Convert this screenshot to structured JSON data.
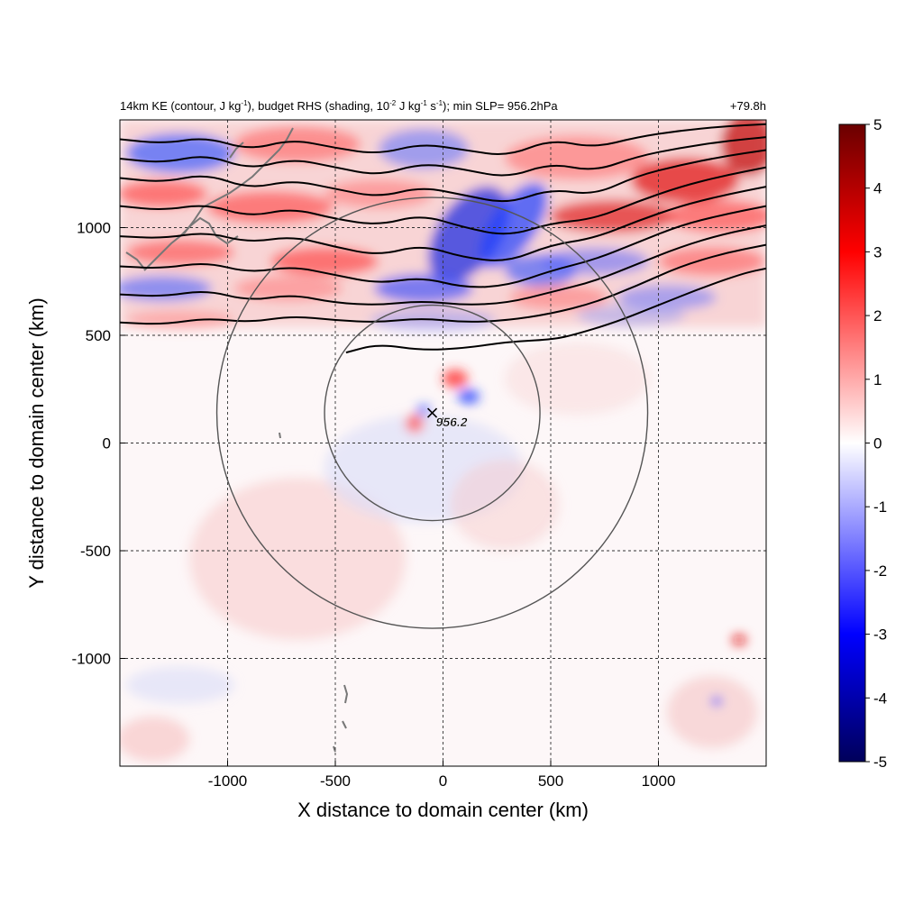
{
  "chart_data": {
    "type": "heatmap",
    "title_left": {
      "prefix": "14km KE (contour, J kg",
      "sup1": "-1",
      "middle": "), budget RHS (shading, 10",
      "sup2": "-2",
      "middle2": " J kg",
      "sup3": "-1",
      "middle3": " s",
      "sup4": "-1",
      "suffix": "); min SLP= 956.2hPa"
    },
    "title_right": "+79.8h",
    "xlabel": "X distance to domain center (km)",
    "ylabel": "Y distance to domain center (km)",
    "xlim": [
      -1500,
      1500
    ],
    "ylim": [
      -1500,
      1500
    ],
    "xticks": [
      -1000,
      -500,
      0,
      500,
      1000
    ],
    "yticks": [
      -1000,
      -500,
      0,
      500,
      1000
    ],
    "xtick_labels": [
      "-1000",
      "-500",
      "0",
      "500",
      "1000"
    ],
    "ytick_labels": [
      "-1000",
      "-500",
      "0",
      "500",
      "1000"
    ],
    "grid": "dashed",
    "colorbar": {
      "range": [
        -5,
        5
      ],
      "ticks": [
        5,
        4,
        3,
        2,
        1,
        0,
        -1,
        -2,
        -3,
        -4,
        -5
      ],
      "tick_labels": [
        "5",
        "4",
        "3",
        "2",
        "1",
        "0",
        "-1",
        "-2",
        "-3",
        "-4",
        "-5"
      ],
      "colors": [
        "#00005a",
        "#0000ff",
        "#ffffff",
        "#ff0000",
        "#6a0000"
      ]
    },
    "circles": [
      {
        "center_x": -50,
        "center_y": 140,
        "radius": 500
      },
      {
        "center_x": -50,
        "center_y": 140,
        "radius": 1000
      }
    ],
    "storm_center": {
      "x": -50,
      "y": 140,
      "label": "956.2"
    },
    "ke_contours": [
      {
        "points": [
          [
            -1500,
            1410
          ],
          [
            -1300,
            1390
          ],
          [
            -1100,
            1420
          ],
          [
            -900,
            1360
          ],
          [
            -700,
            1410
          ],
          [
            -500,
            1370
          ],
          [
            -300,
            1340
          ],
          [
            -100,
            1390
          ],
          [
            100,
            1360
          ],
          [
            300,
            1330
          ],
          [
            500,
            1410
          ],
          [
            700,
            1370
          ],
          [
            900,
            1420
          ],
          [
            1100,
            1450
          ],
          [
            1300,
            1470
          ],
          [
            1500,
            1480
          ]
        ]
      },
      {
        "points": [
          [
            -1500,
            1320
          ],
          [
            -1300,
            1300
          ],
          [
            -1100,
            1340
          ],
          [
            -900,
            1270
          ],
          [
            -700,
            1320
          ],
          [
            -500,
            1280
          ],
          [
            -300,
            1240
          ],
          [
            -100,
            1300
          ],
          [
            100,
            1270
          ],
          [
            300,
            1230
          ],
          [
            500,
            1300
          ],
          [
            700,
            1260
          ],
          [
            900,
            1330
          ],
          [
            1100,
            1370
          ],
          [
            1300,
            1400
          ],
          [
            1500,
            1420
          ]
        ]
      },
      {
        "points": [
          [
            -1500,
            1230
          ],
          [
            -1300,
            1210
          ],
          [
            -1100,
            1250
          ],
          [
            -900,
            1180
          ],
          [
            -700,
            1220
          ],
          [
            -500,
            1180
          ],
          [
            -300,
            1140
          ],
          [
            -100,
            1190
          ],
          [
            100,
            1150
          ],
          [
            300,
            1110
          ],
          [
            500,
            1180
          ],
          [
            700,
            1150
          ],
          [
            900,
            1240
          ],
          [
            1100,
            1290
          ],
          [
            1300,
            1330
          ],
          [
            1500,
            1360
          ]
        ]
      },
      {
        "points": [
          [
            -1500,
            1100
          ],
          [
            -1300,
            1080
          ],
          [
            -1100,
            1110
          ],
          [
            -900,
            1050
          ],
          [
            -700,
            1090
          ],
          [
            -500,
            1040
          ],
          [
            -300,
            1010
          ],
          [
            -100,
            1060
          ],
          [
            100,
            1000
          ],
          [
            300,
            960
          ],
          [
            500,
            1020
          ],
          [
            700,
            1040
          ],
          [
            900,
            1120
          ],
          [
            1100,
            1190
          ],
          [
            1300,
            1240
          ],
          [
            1500,
            1280
          ]
        ]
      },
      {
        "points": [
          [
            -1500,
            960
          ],
          [
            -1300,
            950
          ],
          [
            -1100,
            980
          ],
          [
            -900,
            930
          ],
          [
            -700,
            960
          ],
          [
            -500,
            910
          ],
          [
            -300,
            870
          ],
          [
            -100,
            920
          ],
          [
            100,
            860
          ],
          [
            300,
            840
          ],
          [
            500,
            920
          ],
          [
            700,
            950
          ],
          [
            900,
            1030
          ],
          [
            1100,
            1100
          ],
          [
            1300,
            1150
          ],
          [
            1500,
            1190
          ]
        ]
      },
      {
        "points": [
          [
            -1500,
            820
          ],
          [
            -1300,
            810
          ],
          [
            -1100,
            840
          ],
          [
            -900,
            790
          ],
          [
            -700,
            820
          ],
          [
            -500,
            780
          ],
          [
            -300,
            740
          ],
          [
            -100,
            770
          ],
          [
            100,
            720
          ],
          [
            300,
            730
          ],
          [
            500,
            800
          ],
          [
            700,
            850
          ],
          [
            900,
            930
          ],
          [
            1100,
            1010
          ],
          [
            1300,
            1060
          ],
          [
            1500,
            1100
          ]
        ]
      },
      {
        "points": [
          [
            -1500,
            690
          ],
          [
            -1300,
            680
          ],
          [
            -1100,
            710
          ],
          [
            -900,
            660
          ],
          [
            -700,
            690
          ],
          [
            -500,
            650
          ],
          [
            -300,
            640
          ],
          [
            -100,
            660
          ],
          [
            100,
            640
          ],
          [
            300,
            650
          ],
          [
            500,
            700
          ],
          [
            700,
            750
          ],
          [
            900,
            830
          ],
          [
            1100,
            910
          ],
          [
            1300,
            970
          ],
          [
            1500,
            1010
          ]
        ]
      },
      {
        "points": [
          [
            -1500,
            560
          ],
          [
            -1300,
            550
          ],
          [
            -1100,
            580
          ],
          [
            -900,
            560
          ],
          [
            -700,
            590
          ],
          [
            -500,
            570
          ],
          [
            -300,
            560
          ],
          [
            -100,
            580
          ],
          [
            100,
            560
          ],
          [
            300,
            570
          ],
          [
            500,
            600
          ],
          [
            700,
            650
          ],
          [
            900,
            730
          ],
          [
            1100,
            820
          ],
          [
            1300,
            880
          ],
          [
            1500,
            920
          ]
        ]
      },
      {
        "points": [
          [
            -450,
            420
          ],
          [
            -300,
            460
          ],
          [
            -100,
            430
          ],
          [
            100,
            440
          ],
          [
            300,
            470
          ],
          [
            500,
            480
          ],
          [
            600,
            500
          ],
          [
            800,
            560
          ],
          [
            1000,
            640
          ],
          [
            1200,
            720
          ],
          [
            1400,
            790
          ],
          [
            1500,
            810
          ]
        ]
      }
    ]
  }
}
